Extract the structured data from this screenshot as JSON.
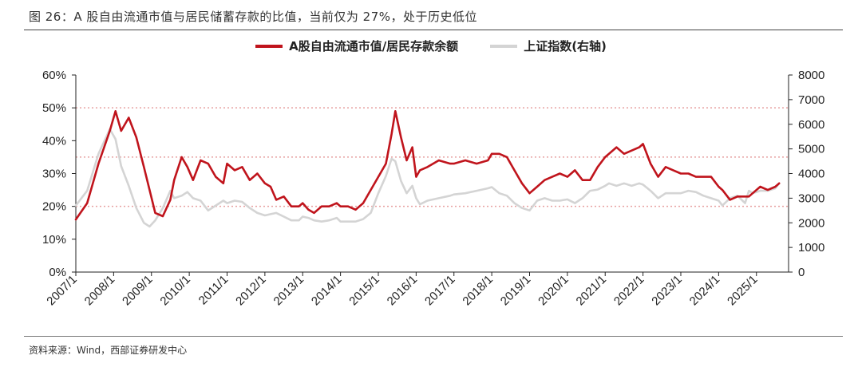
{
  "header": {
    "title": "图 26：A 股自由流通市值与居民储蓄存款的比值，当前仅为 27%，处于历史低位"
  },
  "footer": {
    "source": "资料来源：Wind，西部证券研发中心"
  },
  "colors": {
    "primary": "#c0141c",
    "secondary": "#d4d4d4",
    "reference": "#e8a0a0"
  },
  "chart_data": {
    "type": "line",
    "legend": [
      "A股自由流通市值/居民存款余额",
      "上证指数(右轴)"
    ],
    "legend_position": "top-center",
    "grid": false,
    "categories": [
      "2007/1",
      "2008/1",
      "2009/1",
      "2010/1",
      "2011/1",
      "2012/1",
      "2013/1",
      "2014/1",
      "2015/1",
      "2016/1",
      "2017/1",
      "2018/1",
      "2019/1",
      "2020/1",
      "2021/1",
      "2022/1",
      "2023/1",
      "2024/1",
      "2025/1"
    ],
    "y_left": {
      "ticks": [
        "0%",
        "10%",
        "20%",
        "30%",
        "40%",
        "50%",
        "60%"
      ],
      "ylim": [
        0,
        60
      ]
    },
    "y_right": {
      "ticks": [
        "0",
        "1000",
        "2000",
        "3000",
        "4000",
        "5000",
        "6000",
        "7000",
        "8000"
      ],
      "ylim": [
        0,
        8000
      ]
    },
    "reference_lines": [
      20,
      35,
      50
    ],
    "series": [
      {
        "name": "A股自由流通市值/居民存款余额",
        "axis": "left",
        "x": [
          2007.0,
          2007.3,
          2007.6,
          2007.9,
          2008.05,
          2008.2,
          2008.4,
          2008.6,
          2008.8,
          2008.95,
          2009.1,
          2009.3,
          2009.5,
          2009.6,
          2009.8,
          2009.95,
          2010.1,
          2010.3,
          2010.5,
          2010.7,
          2010.9,
          2011.0,
          2011.2,
          2011.4,
          2011.6,
          2011.8,
          2012.0,
          2012.15,
          2012.3,
          2012.5,
          2012.7,
          2012.9,
          2013.0,
          2013.15,
          2013.3,
          2013.5,
          2013.7,
          2013.9,
          2014.0,
          2014.2,
          2014.4,
          2014.6,
          2014.8,
          2015.0,
          2015.2,
          2015.35,
          2015.45,
          2015.6,
          2015.75,
          2015.9,
          2016.0,
          2016.1,
          2016.3,
          2016.6,
          2016.9,
          2017.0,
          2017.3,
          2017.6,
          2017.9,
          2018.0,
          2018.2,
          2018.4,
          2018.6,
          2018.8,
          2019.0,
          2019.2,
          2019.4,
          2019.6,
          2019.8,
          2020.0,
          2020.2,
          2020.4,
          2020.6,
          2020.8,
          2021.0,
          2021.1,
          2021.3,
          2021.5,
          2021.7,
          2021.9,
          2022.0,
          2022.2,
          2022.4,
          2022.6,
          2022.8,
          2023.0,
          2023.2,
          2023.4,
          2023.6,
          2023.8,
          2024.0,
          2024.1,
          2024.3,
          2024.5,
          2024.7,
          2024.8,
          2024.9,
          2025.1,
          2025.3,
          2025.5,
          2025.6
        ],
        "y": [
          16,
          21,
          33,
          43,
          49,
          43,
          47,
          41,
          32,
          25,
          18,
          17,
          22,
          28,
          35,
          32,
          28,
          34,
          33,
          29,
          27,
          33,
          31,
          32,
          28,
          30,
          27,
          26,
          22,
          23,
          20,
          20,
          21,
          19,
          18,
          20,
          20,
          21,
          20,
          20,
          19,
          21,
          25,
          29,
          33,
          42,
          49,
          41,
          34,
          38,
          29,
          31,
          32,
          34,
          33,
          33,
          34,
          33,
          34,
          36,
          36,
          35,
          31,
          27,
          24,
          26,
          28,
          29,
          30,
          29,
          31,
          28,
          28,
          32,
          35,
          36,
          38,
          36,
          37,
          38,
          39,
          33,
          29,
          32,
          31,
          30,
          30,
          29,
          29,
          29,
          26,
          25,
          22,
          23,
          23,
          23,
          24,
          26,
          25,
          26,
          27
        ]
      },
      {
        "name": "上证指数(右轴)",
        "axis": "right",
        "x": [
          2007.0,
          2007.3,
          2007.6,
          2007.9,
          2008.05,
          2008.2,
          2008.4,
          2008.6,
          2008.8,
          2008.95,
          2009.1,
          2009.3,
          2009.5,
          2009.6,
          2009.8,
          2009.95,
          2010.1,
          2010.3,
          2010.5,
          2010.7,
          2010.9,
          2011.0,
          2011.2,
          2011.4,
          2011.6,
          2011.8,
          2012.0,
          2012.15,
          2012.3,
          2012.5,
          2012.7,
          2012.9,
          2013.0,
          2013.15,
          2013.3,
          2013.5,
          2013.7,
          2013.9,
          2014.0,
          2014.2,
          2014.4,
          2014.6,
          2014.8,
          2015.0,
          2015.2,
          2015.35,
          2015.45,
          2015.6,
          2015.75,
          2015.9,
          2016.0,
          2016.1,
          2016.3,
          2016.6,
          2016.9,
          2017.0,
          2017.3,
          2017.6,
          2017.9,
          2018.0,
          2018.2,
          2018.4,
          2018.6,
          2018.8,
          2019.0,
          2019.2,
          2019.4,
          2019.6,
          2019.8,
          2020.0,
          2020.2,
          2020.4,
          2020.6,
          2020.8,
          2021.0,
          2021.1,
          2021.3,
          2021.5,
          2021.7,
          2021.9,
          2022.0,
          2022.2,
          2022.4,
          2022.6,
          2022.8,
          2023.0,
          2023.2,
          2023.4,
          2023.6,
          2023.8,
          2024.0,
          2024.1,
          2024.3,
          2024.5,
          2024.7,
          2024.8,
          2024.9,
          2025.1,
          2025.3,
          2025.5,
          2025.6
        ],
        "y": [
          2700,
          3300,
          4800,
          5800,
          5400,
          4300,
          3500,
          2600,
          2000,
          1850,
          2100,
          2600,
          3300,
          3000,
          3100,
          3250,
          3000,
          2900,
          2500,
          2700,
          2900,
          2800,
          2900,
          2850,
          2600,
          2400,
          2300,
          2350,
          2400,
          2250,
          2100,
          2100,
          2250,
          2200,
          2100,
          2050,
          2100,
          2200,
          2050,
          2050,
          2050,
          2150,
          2400,
          3200,
          3900,
          4600,
          4500,
          3700,
          3200,
          3500,
          3000,
          2750,
          2900,
          3000,
          3100,
          3150,
          3200,
          3300,
          3400,
          3450,
          3200,
          3100,
          2800,
          2600,
          2500,
          2900,
          3000,
          2900,
          2900,
          2950,
          2800,
          3000,
          3300,
          3350,
          3500,
          3600,
          3500,
          3600,
          3500,
          3600,
          3550,
          3300,
          3000,
          3200,
          3200,
          3200,
          3300,
          3250,
          3100,
          3000,
          2900,
          2700,
          3000,
          3100,
          2800,
          3300,
          3200,
          3300,
          3300,
          3400,
          3600
        ]
      }
    ]
  }
}
